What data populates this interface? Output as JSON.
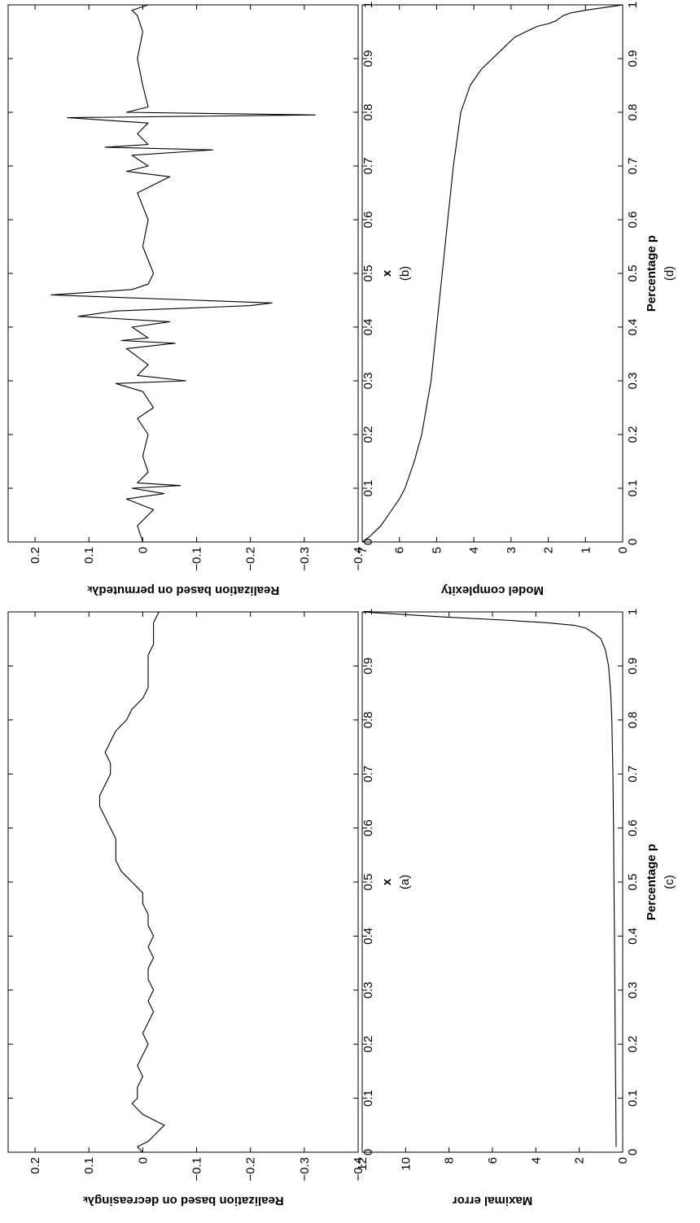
{
  "chart_data": [
    {
      "id": "a",
      "type": "line",
      "caption": "(a)",
      "xlabel": "x",
      "ylabel": "Realization based on decreasingλₖ",
      "xlim": [
        0,
        1
      ],
      "ylim": [
        -0.4,
        0.25
      ],
      "xticks": [
        "0",
        "0.1",
        "0.2",
        "0.3",
        "0.4",
        "0.5",
        "0.6",
        "0.7",
        "0.8",
        "0.9",
        "1"
      ],
      "yticks": [
        "0.2",
        "0.1",
        "0",
        "−0.1",
        "−0.2",
        "−0.3",
        "−0.4"
      ],
      "x": [
        0.0,
        0.01,
        0.02,
        0.03,
        0.04,
        0.05,
        0.06,
        0.07,
        0.08,
        0.09,
        0.1,
        0.12,
        0.14,
        0.16,
        0.18,
        0.2,
        0.22,
        0.24,
        0.26,
        0.28,
        0.3,
        0.32,
        0.34,
        0.36,
        0.38,
        0.4,
        0.42,
        0.44,
        0.46,
        0.48,
        0.5,
        0.52,
        0.54,
        0.56,
        0.58,
        0.6,
        0.62,
        0.64,
        0.66,
        0.68,
        0.7,
        0.72,
        0.74,
        0.76,
        0.78,
        0.8,
        0.82,
        0.84,
        0.86,
        0.88,
        0.9,
        0.92,
        0.94,
        0.96,
        0.98,
        1.0
      ],
      "y": [
        0.0,
        0.01,
        -0.01,
        -0.02,
        -0.03,
        -0.04,
        -0.02,
        0.0,
        0.01,
        0.02,
        0.01,
        0.01,
        0.0,
        0.01,
        0.0,
        -0.01,
        0.0,
        -0.01,
        -0.02,
        -0.01,
        -0.02,
        -0.01,
        -0.01,
        -0.02,
        -0.01,
        -0.02,
        -0.01,
        -0.01,
        0.0,
        0.0,
        0.02,
        0.04,
        0.05,
        0.05,
        0.05,
        0.06,
        0.07,
        0.08,
        0.08,
        0.07,
        0.06,
        0.06,
        0.07,
        0.06,
        0.05,
        0.03,
        0.02,
        0.0,
        -0.01,
        -0.01,
        -0.01,
        -0.01,
        -0.02,
        -0.02,
        -0.02,
        -0.03
      ]
    },
    {
      "id": "b",
      "type": "line",
      "caption": "(b)",
      "xlabel": "x",
      "ylabel": "Realization based on permutedλₖ",
      "xlim": [
        0,
        1
      ],
      "ylim": [
        -0.4,
        0.25
      ],
      "xticks": [
        "0",
        "0.1",
        "0.2",
        "0.3",
        "0.4",
        "0.5",
        "0.6",
        "0.7",
        "0.8",
        "0.9",
        "1"
      ],
      "yticks": [
        "0.2",
        "0.1",
        "0",
        "−0.1",
        "−0.2",
        "−0.3",
        "−0.4"
      ],
      "x": [
        0.0,
        0.03,
        0.06,
        0.08,
        0.09,
        0.1,
        0.105,
        0.11,
        0.13,
        0.16,
        0.2,
        0.23,
        0.25,
        0.28,
        0.295,
        0.3,
        0.31,
        0.33,
        0.36,
        0.37,
        0.375,
        0.38,
        0.4,
        0.41,
        0.42,
        0.43,
        0.44,
        0.445,
        0.45,
        0.46,
        0.47,
        0.48,
        0.5,
        0.55,
        0.6,
        0.65,
        0.68,
        0.69,
        0.7,
        0.72,
        0.73,
        0.735,
        0.74,
        0.76,
        0.78,
        0.79,
        0.795,
        0.8,
        0.81,
        0.85,
        0.9,
        0.95,
        0.98,
        0.99,
        1.0
      ],
      "y": [
        0.0,
        0.01,
        -0.02,
        0.03,
        -0.04,
        0.02,
        -0.07,
        0.01,
        -0.01,
        0.0,
        -0.01,
        0.01,
        -0.02,
        0.0,
        0.05,
        -0.08,
        0.01,
        -0.01,
        0.03,
        -0.06,
        0.04,
        -0.01,
        0.02,
        -0.05,
        0.12,
        0.05,
        -0.2,
        -0.24,
        -0.1,
        0.17,
        0.02,
        -0.01,
        -0.02,
        0.0,
        -0.01,
        0.01,
        -0.05,
        0.03,
        -0.01,
        0.02,
        -0.13,
        0.07,
        -0.01,
        0.01,
        -0.01,
        0.14,
        -0.32,
        0.03,
        -0.01,
        0.0,
        0.01,
        0.0,
        0.01,
        0.02,
        -0.01
      ]
    },
    {
      "id": "c",
      "type": "line",
      "caption": "(c)",
      "xlabel": "Percentage p",
      "ylabel": "Maximal error",
      "xlim": [
        0,
        1
      ],
      "ylim": [
        0,
        12
      ],
      "xticks": [
        "0",
        "0.1",
        "0.2",
        "0.3",
        "0.4",
        "0.5",
        "0.6",
        "0.7",
        "0.8",
        "0.9",
        "1"
      ],
      "yticks": [
        "12",
        "10",
        "8",
        "6",
        "4",
        "2",
        "0"
      ],
      "x": [
        0.01,
        0.1,
        0.2,
        0.3,
        0.4,
        0.5,
        0.6,
        0.7,
        0.8,
        0.85,
        0.9,
        0.93,
        0.95,
        0.96,
        0.97,
        0.975,
        0.98,
        0.985,
        0.99,
        0.995,
        1.0
      ],
      "y": [
        0.3,
        0.32,
        0.34,
        0.36,
        0.38,
        0.4,
        0.42,
        0.45,
        0.5,
        0.55,
        0.65,
        0.8,
        1.0,
        1.3,
        1.7,
        2.2,
        3.5,
        5.5,
        8.0,
        10.0,
        12.0
      ]
    },
    {
      "id": "d",
      "type": "line",
      "caption": "(d)",
      "xlabel": "Percentage p",
      "ylabel": "Model complexity",
      "xlim": [
        0,
        1
      ],
      "ylim": [
        0,
        7
      ],
      "xticks": [
        "0",
        "0.1",
        "0.2",
        "0.3",
        "0.4",
        "0.5",
        "0.6",
        "0.7",
        "0.8",
        "0.9",
        "1"
      ],
      "yticks": [
        "7",
        "6",
        "5",
        "4",
        "3",
        "2",
        "1",
        "0"
      ],
      "x": [
        0.0,
        0.01,
        0.02,
        0.03,
        0.05,
        0.08,
        0.1,
        0.15,
        0.2,
        0.3,
        0.4,
        0.5,
        0.6,
        0.7,
        0.75,
        0.8,
        0.85,
        0.88,
        0.9,
        0.92,
        0.94,
        0.95,
        0.96,
        0.965,
        0.97,
        0.98,
        0.985,
        0.99,
        0.995,
        1.0
      ],
      "y": [
        7.0,
        6.8,
        6.65,
        6.5,
        6.3,
        6.0,
        5.85,
        5.6,
        5.4,
        5.15,
        5.0,
        4.85,
        4.7,
        4.55,
        4.45,
        4.35,
        4.1,
        3.8,
        3.5,
        3.2,
        2.9,
        2.6,
        2.3,
        2.0,
        1.8,
        1.6,
        1.4,
        1.0,
        0.5,
        0.0
      ]
    }
  ]
}
